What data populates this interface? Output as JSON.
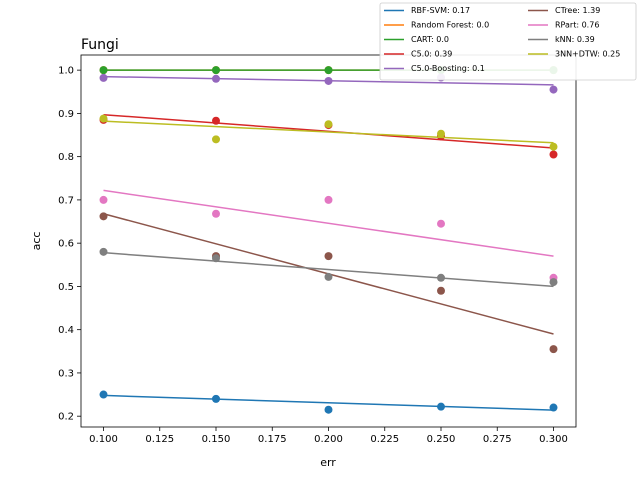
{
  "chart_data": {
    "type": "scatter",
    "title": "Fungi",
    "xlabel": "err",
    "ylabel": "acc",
    "xlim": [
      0.09,
      0.31
    ],
    "ylim": [
      0.175,
      1.035
    ],
    "xticks": [
      0.1,
      0.125,
      0.15,
      0.175,
      0.2,
      0.225,
      0.25,
      0.275,
      0.3
    ],
    "xtick_labels": [
      "0.100",
      "0.125",
      "0.150",
      "0.175",
      "0.200",
      "0.225",
      "0.250",
      "0.275",
      "0.300"
    ],
    "yticks": [
      0.2,
      0.3,
      0.4,
      0.5,
      0.6,
      0.7,
      0.8,
      0.9,
      1.0
    ],
    "ytick_labels": [
      "0.2",
      "0.3",
      "0.4",
      "0.5",
      "0.6",
      "0.7",
      "0.8",
      "0.9",
      "1.0"
    ],
    "grid": false,
    "legend_position": "top-right, outside",
    "legend_columns": 2,
    "x": [
      0.1,
      0.15,
      0.2,
      0.25,
      0.3
    ],
    "series": [
      {
        "name": "RBF-SVM: 0.17",
        "color": "#1f77b4",
        "values": [
          0.25,
          0.24,
          0.215,
          0.222,
          0.22
        ],
        "fit": [
          0.248,
          0.214
        ]
      },
      {
        "name": "Random Forest: 0.0",
        "color": "#ff7f0e",
        "values": [
          1.0,
          1.0,
          1.0,
          1.0,
          1.0
        ],
        "fit": [
          1.0,
          1.0
        ]
      },
      {
        "name": "CART: 0.0",
        "color": "#2ca02c",
        "values": [
          1.0,
          1.0,
          1.0,
          1.0,
          1.0
        ],
        "fit": [
          1.0,
          1.0
        ]
      },
      {
        "name": "C5.0: 0.39",
        "color": "#d62728",
        "values": [
          0.885,
          0.883,
          0.873,
          0.847,
          0.805
        ],
        "fit": [
          0.897,
          0.82
        ]
      },
      {
        "name": "C5.0-Boosting: 0.1",
        "color": "#9467bd",
        "values": [
          0.982,
          0.98,
          0.975,
          0.983,
          0.955
        ],
        "fit": [
          0.985,
          0.966
        ]
      },
      {
        "name": "CTree: 1.39",
        "color": "#8c564b",
        "values": [
          0.662,
          0.57,
          0.57,
          0.49,
          0.355
        ],
        "fit": [
          0.668,
          0.39
        ]
      },
      {
        "name": "RPart: 0.76",
        "color": "#e377c2",
        "values": [
          0.7,
          0.668,
          0.7,
          0.645,
          0.52
        ],
        "fit": [
          0.722,
          0.57
        ]
      },
      {
        "name": "kNN: 0.39",
        "color": "#7f7f7f",
        "values": [
          0.58,
          0.565,
          0.522,
          0.52,
          0.51
        ],
        "fit": [
          0.578,
          0.5
        ]
      },
      {
        "name": "3NN+DTW: 0.25",
        "color": "#bcbd22",
        "values": [
          0.888,
          0.84,
          0.875,
          0.853,
          0.823
        ],
        "fit": [
          0.882,
          0.832
        ]
      }
    ]
  }
}
